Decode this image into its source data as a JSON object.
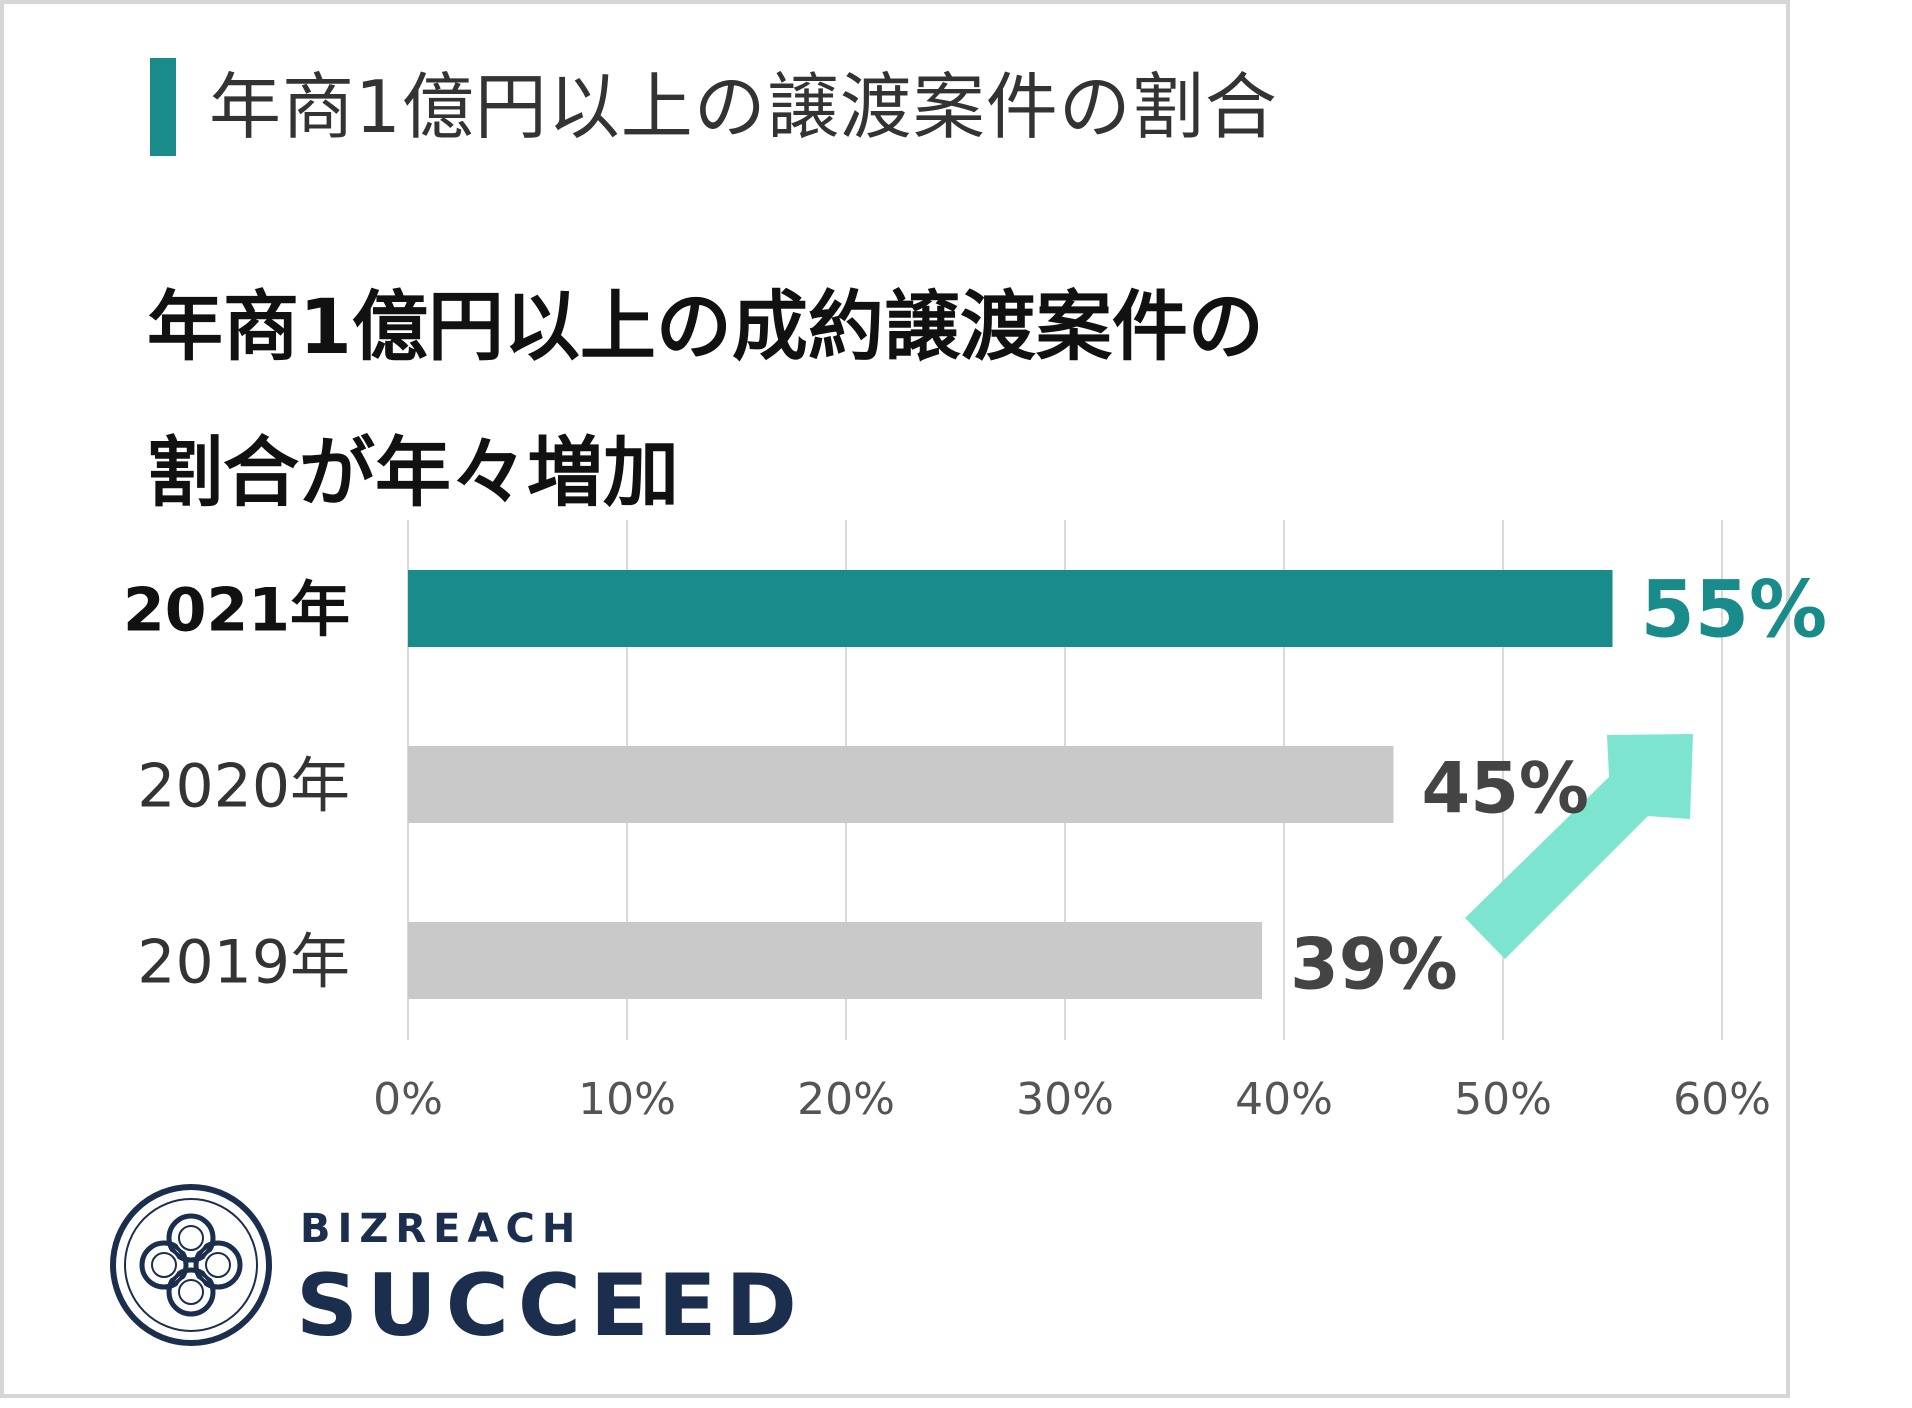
{
  "header": {
    "title": "年商1億円以上の譲渡案件の割合"
  },
  "headline": {
    "line1": "年商1億円以上の成約譲渡案件の",
    "line2": "割合が年々増加"
  },
  "colors": {
    "accent": "#198b8a",
    "bar_default": "#c9c9c9",
    "arrow": "#7de5cf",
    "grid": "#d9d9d9",
    "brand": "#1b2e4d"
  },
  "chart_data": {
    "type": "bar",
    "orientation": "horizontal",
    "categories": [
      "2021年",
      "2020年",
      "2019年"
    ],
    "values": [
      55,
      45,
      39
    ],
    "value_labels": [
      "55%",
      "45%",
      "39%"
    ],
    "highlight": "2021年",
    "xlim": [
      0,
      60
    ],
    "xticks": [
      "0%",
      "10%",
      "20%",
      "30%",
      "40%",
      "50%",
      "60%"
    ],
    "grid": "vertical",
    "annotation": "upward-arrow"
  },
  "brand": {
    "name_top": "BIZREACH",
    "name_main": "SUCCEED",
    "logo_icon": "knot-logo-icon"
  }
}
